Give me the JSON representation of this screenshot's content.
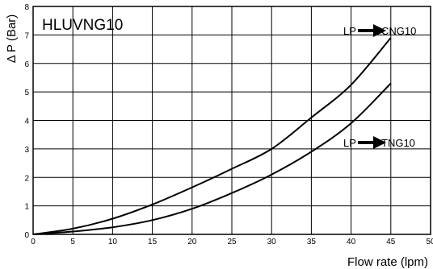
{
  "chart_data": {
    "type": "line",
    "title": "HLUVNG10",
    "xlabel": "Flow rate (lpm)",
    "ylabel": "Δ P (Bar)",
    "xlim": [
      0,
      50
    ],
    "ylim": [
      0,
      8
    ],
    "xticks": [
      "0",
      "5",
      "10",
      "15",
      "20",
      "25",
      "30",
      "35",
      "40",
      "45",
      "50"
    ],
    "yticks": [
      "0",
      "1",
      "2",
      "3",
      "4",
      "5",
      "6",
      "7",
      "8"
    ],
    "grid": true,
    "series": [
      {
        "name": "LP",
        "label_target": "CNG10",
        "x": [
          0,
          5,
          10,
          15,
          20,
          25,
          30,
          35,
          40,
          45
        ],
        "y": [
          0,
          0.2,
          0.55,
          1.05,
          1.65,
          2.3,
          3.0,
          4.1,
          5.25,
          6.9
        ]
      },
      {
        "name": "LP",
        "label_target": "TNG10",
        "x": [
          0,
          5,
          10,
          15,
          20,
          25,
          30,
          35,
          40,
          45
        ],
        "y": [
          0,
          0.1,
          0.25,
          0.5,
          0.9,
          1.45,
          2.1,
          2.9,
          3.9,
          5.3
        ]
      }
    ]
  }
}
